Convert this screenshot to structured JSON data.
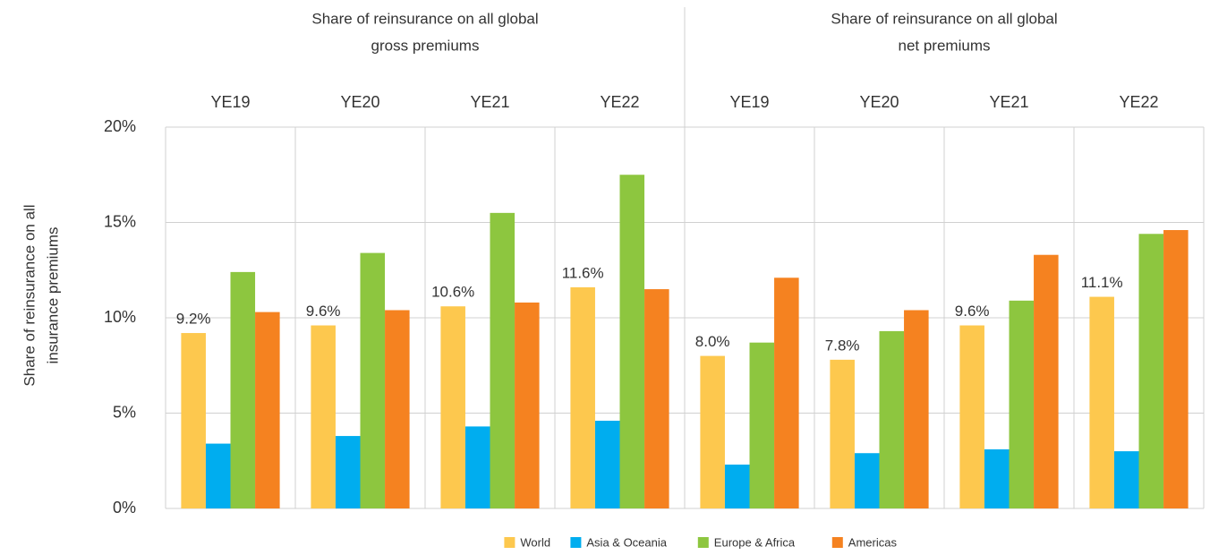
{
  "chart_data": {
    "type": "bar",
    "group_labels": [
      [
        "Share of reinsurance on all global",
        "gross premiums"
      ],
      [
        "Share of reinsurance on all global",
        "net premiums"
      ]
    ],
    "ylabel": [
      "Share of reinsurance on all",
      "insurance premiums"
    ],
    "categories": [
      "YE19",
      "YE20",
      "YE21",
      "YE22",
      "YE19",
      "YE20",
      "YE21",
      "YE22"
    ],
    "series": [
      {
        "name": "World",
        "color": "#fdc84e",
        "values": [
          9.2,
          9.6,
          10.6,
          11.6,
          8.0,
          7.8,
          9.6,
          11.1
        ],
        "value_labels": [
          "9.2%",
          "9.6%",
          "10.6%",
          "11.6%",
          "8.0%",
          "7.8%",
          "9.6%",
          "11.1%"
        ]
      },
      {
        "name": "Asia & Oceania",
        "color": "#00adef",
        "values": [
          3.4,
          3.8,
          4.3,
          4.6,
          2.3,
          2.9,
          3.1,
          3.0
        ]
      },
      {
        "name": "Europe & Africa",
        "color": "#8dc63f",
        "values": [
          12.4,
          13.4,
          15.5,
          17.5,
          8.7,
          9.3,
          10.9,
          14.4
        ]
      },
      {
        "name": "Americas",
        "color": "#f58220",
        "values": [
          10.3,
          10.4,
          10.8,
          11.5,
          12.1,
          10.4,
          13.3,
          14.6
        ]
      }
    ],
    "ylim": [
      0,
      20
    ],
    "yticks": [
      {
        "value": 0,
        "label": "0%"
      },
      {
        "value": 5,
        "label": "5%"
      },
      {
        "value": 10,
        "label": "10%"
      },
      {
        "value": 15,
        "label": "15%"
      },
      {
        "value": 20,
        "label": "20%"
      }
    ],
    "grid": true,
    "legend": "bottom"
  }
}
